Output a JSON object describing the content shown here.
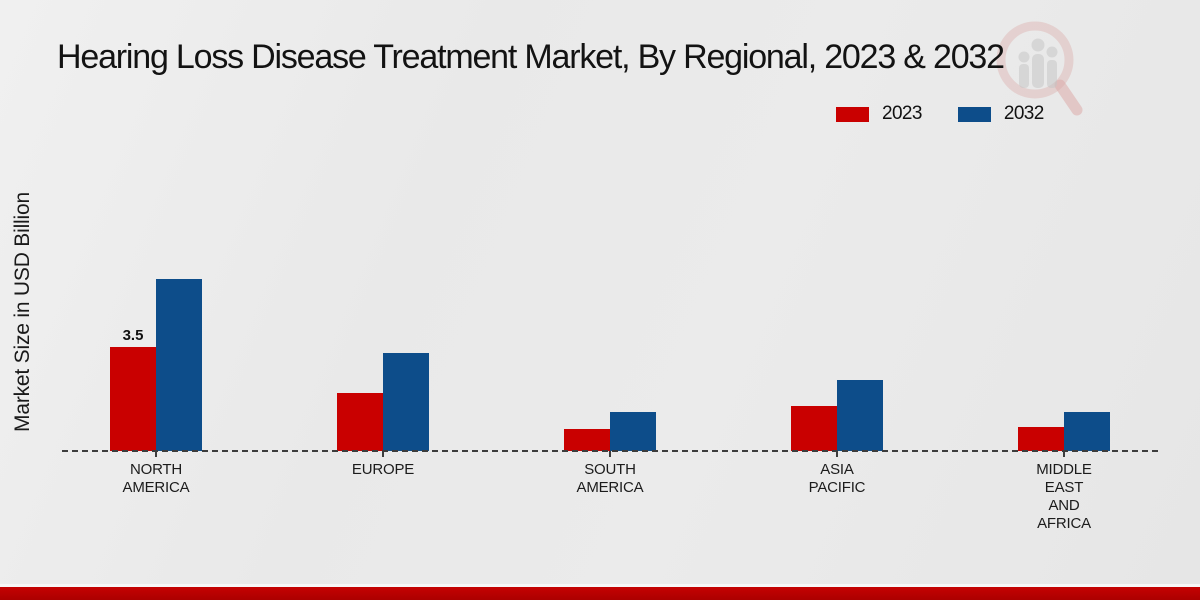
{
  "page": {
    "title": "Hearing Loss Disease Treatment Market, By Regional, 2023 & 2032"
  },
  "ylabel": "Market Size in USD Billion",
  "legend": {
    "items": [
      {
        "label": "2023",
        "color": "#c90000"
      },
      {
        "label": "2032",
        "color": "#0d4d8a"
      }
    ],
    "position": "top-right"
  },
  "watermark_icon": "magnifier-bar-chart-logo",
  "colors": {
    "series_2023": "#c90000",
    "series_2032": "#0d4d8a",
    "footer_band": "#b90000",
    "background": "#e9e9e9",
    "axis": "#3d3d3d"
  },
  "chart_data": {
    "type": "bar",
    "title": "Hearing Loss Disease Treatment Market, By Regional, 2023 & 2032",
    "xlabel": "",
    "ylabel": "Market Size in USD Billion",
    "categories": [
      "NORTH AMERICA",
      "EUROPE",
      "SOUTH AMERICA",
      "ASIA PACIFIC",
      "MIDDLE EAST AND AFRICA"
    ],
    "category_label_lines": [
      [
        "NORTH",
        "AMERICA"
      ],
      [
        "EUROPE"
      ],
      [
        "SOUTH",
        "AMERICA"
      ],
      [
        "ASIA",
        "PACIFIC"
      ],
      [
        "MIDDLE",
        "EAST",
        "AND",
        "AFRICA"
      ]
    ],
    "series": [
      {
        "name": "2023",
        "color": "#c90000",
        "values": [
          3.5,
          1.95,
          0.75,
          1.5,
          0.8
        ]
      },
      {
        "name": "2032",
        "color": "#0d4d8a",
        "values": [
          5.8,
          3.3,
          1.3,
          2.4,
          1.3
        ]
      }
    ],
    "value_labels": [
      {
        "category_index": 0,
        "series_index": 0,
        "text": "3.5"
      }
    ],
    "ylim": [
      0,
      6.5
    ],
    "axis": {
      "baseline_style": "dashed",
      "gridlines": false,
      "y_tick_labels_visible": false
    },
    "legend_position": "top-right"
  }
}
